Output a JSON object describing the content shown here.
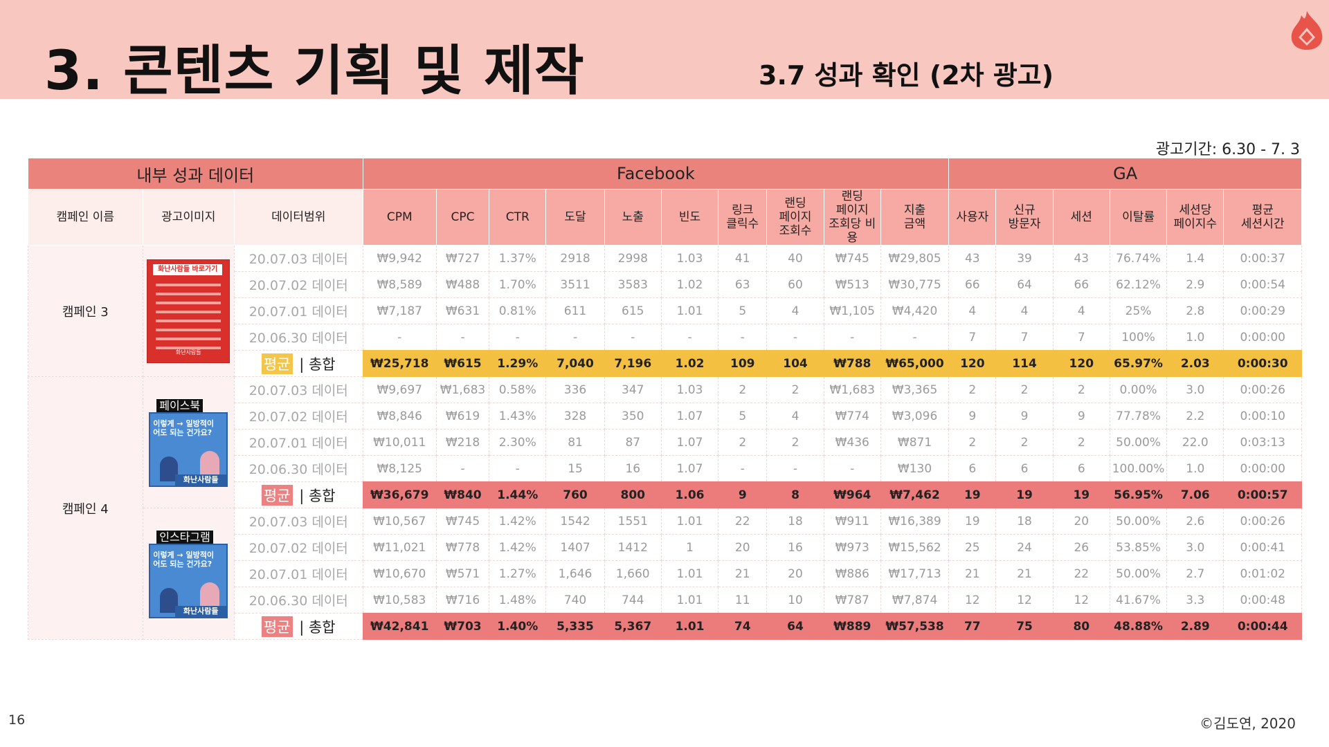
{
  "header": {
    "title": "3. 콘텐츠 기획 및 제작",
    "subtitle": "3.7 성과 확인 (2차 광고)",
    "logo_icon": "flame-logo-icon"
  },
  "period": "광고기간: 6.30 - 7. 3",
  "footer": {
    "page": "16",
    "copyright": "©김도연, 2020"
  },
  "colors": {
    "header_bg": "#f7c7c0",
    "group_header": "#e9837c",
    "metric_header": "#f6aaa3",
    "sum_yellow": "#f4c041",
    "sum_red": "#ec7b7b"
  },
  "table": {
    "groups": [
      {
        "label": "내부 성과 데이터"
      },
      {
        "label": "Facebook"
      },
      {
        "label": "GA"
      }
    ],
    "left_headers": [
      "캠페인 이름",
      "광고이미지",
      "데이터범위"
    ],
    "metric_headers": [
      "CPM",
      "CPC",
      "CTR",
      "도달",
      "노출",
      "빈도",
      "링크\n클릭수",
      "랜딩\n페이지\n조회수",
      "랜딩\n페이지\n조회당 비용",
      "지출\n금액",
      "사용자",
      "신규\n방문자",
      "세션",
      "이탈률",
      "세션당\n페이지수",
      "평균\n세션시간"
    ],
    "avg_badge": "평균",
    "total_suffix": " | 총합",
    "campaigns": [
      {
        "name": "캠페인 3",
        "ads": [
          {
            "label": "",
            "image": {
              "title": "화난사람들 바로가기",
              "footer": "화난사람들"
            },
            "rows": [
              {
                "range": "20.07.03 데이터",
                "values": [
                  "₩9,942",
                  "₩727",
                  "1.37%",
                  "2918",
                  "2998",
                  "1.03",
                  "41",
                  "40",
                  "₩745",
                  "₩29,805",
                  "43",
                  "39",
                  "43",
                  "76.74%",
                  "1.4",
                  "0:00:37"
                ]
              },
              {
                "range": "20.07.02 데이터",
                "values": [
                  "₩8,589",
                  "₩488",
                  "1.70%",
                  "3511",
                  "3583",
                  "1.02",
                  "63",
                  "60",
                  "₩513",
                  "₩30,775",
                  "66",
                  "64",
                  "66",
                  "62.12%",
                  "2.9",
                  "0:00:54"
                ]
              },
              {
                "range": "20.07.01 데이터",
                "values": [
                  "₩7,187",
                  "₩631",
                  "0.81%",
                  "611",
                  "615",
                  "1.01",
                  "5",
                  "4",
                  "₩1,105",
                  "₩4,420",
                  "4",
                  "4",
                  "4",
                  "25%",
                  "2.8",
                  "0:00:29"
                ]
              },
              {
                "range": "20.06.30 데이터",
                "values": [
                  "-",
                  "-",
                  "-",
                  "-",
                  "-",
                  "-",
                  "-",
                  "-",
                  "-",
                  "-",
                  "7",
                  "7",
                  "7",
                  "100%",
                  "1.0",
                  "0:00:00"
                ]
              }
            ],
            "total": {
              "values": [
                "₩25,718",
                "₩615",
                "1.29%",
                "7,040",
                "7,196",
                "1.02",
                "109",
                "104",
                "₩788",
                "₩65,000",
                "120",
                "114",
                "120",
                "65.97%",
                "2.03",
                "0:00:30"
              ]
            }
          }
        ]
      },
      {
        "name": "캠페인 4",
        "ads": [
          {
            "label": "페이스북",
            "image": {
              "text": "이렇게 → 일방적이어도 되는 건가요?",
              "brand": "화난사람들"
            },
            "rows": [
              {
                "range": "20.07.03 데이터",
                "values": [
                  "₩9,697",
                  "₩1,683",
                  "0.58%",
                  "336",
                  "347",
                  "1.03",
                  "2",
                  "2",
                  "₩1,683",
                  "₩3,365",
                  "2",
                  "2",
                  "2",
                  "0.00%",
                  "3.0",
                  "0:00:26"
                ]
              },
              {
                "range": "20.07.02 데이터",
                "values": [
                  "₩8,846",
                  "₩619",
                  "1.43%",
                  "328",
                  "350",
                  "1.07",
                  "5",
                  "4",
                  "₩774",
                  "₩3,096",
                  "9",
                  "9",
                  "9",
                  "77.78%",
                  "2.2",
                  "0:00:10"
                ]
              },
              {
                "range": "20.07.01 데이터",
                "values": [
                  "₩10,011",
                  "₩218",
                  "2.30%",
                  "81",
                  "87",
                  "1.07",
                  "2",
                  "2",
                  "₩436",
                  "₩871",
                  "2",
                  "2",
                  "2",
                  "50.00%",
                  "22.0",
                  "0:03:13"
                ]
              },
              {
                "range": "20.06.30 데이터",
                "values": [
                  "₩8,125",
                  "-",
                  "-",
                  "15",
                  "16",
                  "1.07",
                  "-",
                  "-",
                  "-",
                  "₩130",
                  "6",
                  "6",
                  "6",
                  "100.00%",
                  "1.0",
                  "0:00:00"
                ]
              }
            ],
            "total": {
              "values": [
                "₩36,679",
                "₩840",
                "1.44%",
                "760",
                "800",
                "1.06",
                "9",
                "8",
                "₩964",
                "₩7,462",
                "19",
                "19",
                "19",
                "56.95%",
                "7.06",
                "0:00:57"
              ]
            }
          },
          {
            "label": "인스타그램",
            "image": {
              "text": "이렇게 → 일방적이어도 되는 건가요?",
              "brand": "화난사람들"
            },
            "rows": [
              {
                "range": "20.07.03 데이터",
                "values": [
                  "₩10,567",
                  "₩745",
                  "1.42%",
                  "1542",
                  "1551",
                  "1.01",
                  "22",
                  "18",
                  "₩911",
                  "₩16,389",
                  "19",
                  "18",
                  "20",
                  "50.00%",
                  "2.6",
                  "0:00:26"
                ]
              },
              {
                "range": "20.07.02 데이터",
                "values": [
                  "₩11,021",
                  "₩778",
                  "1.42%",
                  "1407",
                  "1412",
                  "1",
                  "20",
                  "16",
                  "₩973",
                  "₩15,562",
                  "25",
                  "24",
                  "26",
                  "53.85%",
                  "3.0",
                  "0:00:41"
                ]
              },
              {
                "range": "20.07.01 데이터",
                "values": [
                  "₩10,670",
                  "₩571",
                  "1.27%",
                  "1,646",
                  "1,660",
                  "1.01",
                  "21",
                  "20",
                  "₩886",
                  "₩17,713",
                  "21",
                  "21",
                  "22",
                  "50.00%",
                  "2.7",
                  "0:01:02"
                ]
              },
              {
                "range": "20.06.30 데이터",
                "values": [
                  "₩10,583",
                  "₩716",
                  "1.48%",
                  "740",
                  "744",
                  "1.01",
                  "11",
                  "10",
                  "₩787",
                  "₩7,874",
                  "12",
                  "12",
                  "12",
                  "41.67%",
                  "3.3",
                  "0:00:48"
                ]
              }
            ],
            "total": {
              "values": [
                "₩42,841",
                "₩703",
                "1.40%",
                "5,335",
                "5,367",
                "1.01",
                "74",
                "64",
                "₩889",
                "₩57,538",
                "77",
                "75",
                "80",
                "48.88%",
                "2.89",
                "0:00:44"
              ]
            }
          }
        ]
      }
    ]
  }
}
